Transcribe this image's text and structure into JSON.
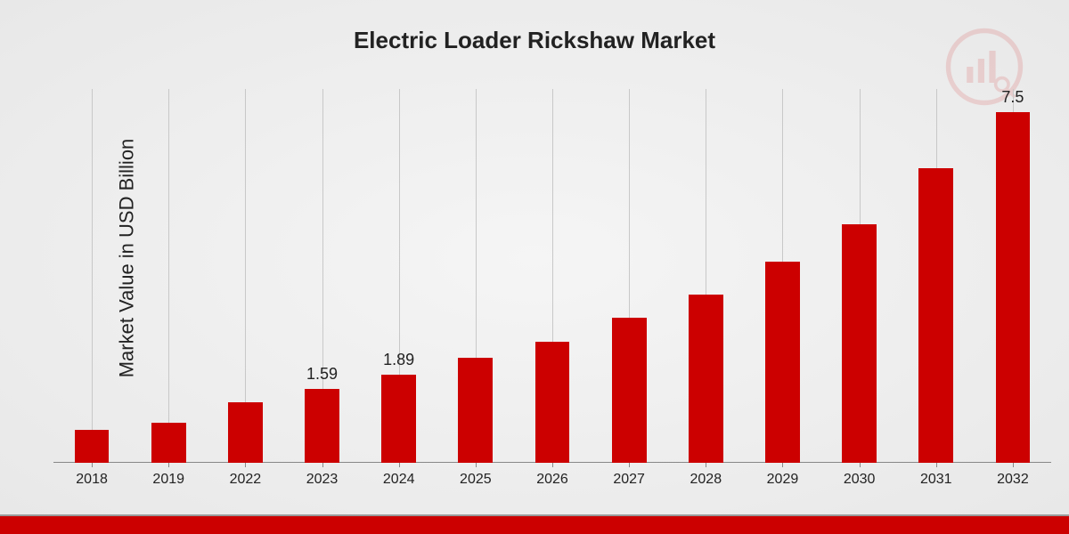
{
  "chart": {
    "type": "bar",
    "title": "Electric Loader Rickshaw Market",
    "ylabel": "Market Value in USD Billion",
    "categories": [
      "2018",
      "2019",
      "2022",
      "2023",
      "2024",
      "2025",
      "2026",
      "2027",
      "2028",
      "2029",
      "2030",
      "2031",
      "2032"
    ],
    "values": [
      0.7,
      0.85,
      1.3,
      1.59,
      1.89,
      2.25,
      2.6,
      3.1,
      3.6,
      4.3,
      5.1,
      6.3,
      7.5
    ],
    "bar_labels": {
      "3": "1.59",
      "4": "1.89",
      "12": "7.5"
    },
    "bar_color": "#cc0000",
    "grid_color": "#c8c8c8",
    "background_gradient": [
      "#f5f5f5",
      "#e8e8e8"
    ],
    "title_fontsize": 26,
    "ylabel_fontsize": 22,
    "xlabel_fontsize": 16,
    "barlabel_fontsize": 18,
    "ylim": [
      0,
      8
    ],
    "bar_width": 0.45,
    "bottom_bar_color": "#cc0000",
    "axis_color": "#888",
    "text_color": "#222"
  }
}
